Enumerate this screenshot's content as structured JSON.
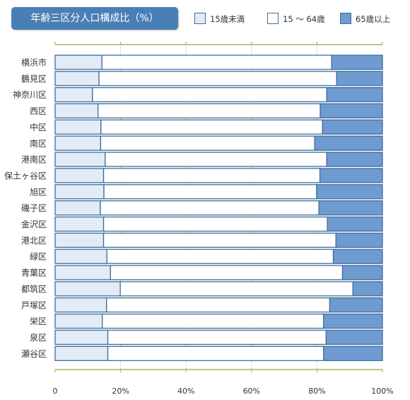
{
  "chart_data": {
    "type": "bar",
    "orientation": "horizontal",
    "stacked": true,
    "title": "年齢三区分人口構成比（%）",
    "categories": [
      "横浜市",
      "鶴見区",
      "神奈川区",
      "西区",
      "中区",
      "南区",
      "港南区",
      "保土ヶ谷区",
      "旭区",
      "磯子区",
      "金沢区",
      "港北区",
      "緑区",
      "青葉区",
      "都筑区",
      "戸塚区",
      "栄区",
      "泉区",
      "瀬谷区"
    ],
    "series": [
      {
        "name": "15歳未満",
        "color": "#e3ebf6",
        "values": [
          14.3,
          13.4,
          11.4,
          13.1,
          14.0,
          13.9,
          15.3,
          14.8,
          14.9,
          13.8,
          14.8,
          14.8,
          15.8,
          16.9,
          19.9,
          15.7,
          14.4,
          16.1,
          16.1
        ]
      },
      {
        "name": "15 〜 64歳",
        "color": "#ffffff",
        "values": [
          70.2,
          72.6,
          71.6,
          67.9,
          67.7,
          65.4,
          67.7,
          66.1,
          65.0,
          66.8,
          68.4,
          71.0,
          69.2,
          70.9,
          71.1,
          68.2,
          67.6,
          66.7,
          65.9
        ]
      },
      {
        "name": "65歳以上",
        "color": "#6f9bd1",
        "values": [
          15.5,
          14.0,
          17.0,
          19.0,
          18.3,
          20.7,
          17.0,
          19.1,
          20.1,
          19.4,
          16.8,
          14.2,
          15.0,
          12.2,
          9.0,
          16.1,
          18.0,
          17.2,
          18.0
        ]
      }
    ],
    "xlim": [
      0,
      100
    ],
    "xticks": [
      "0",
      "20%",
      "40%",
      "60%",
      "80%",
      "100%"
    ],
    "grid": true,
    "legend_position": "top-right"
  }
}
